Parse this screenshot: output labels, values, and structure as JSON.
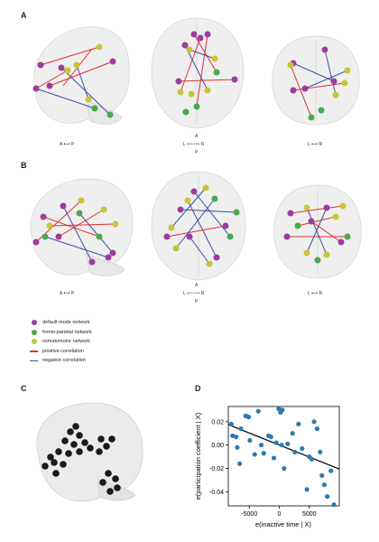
{
  "panels": {
    "a": "A",
    "b": "B",
    "c": "C",
    "d": "D"
  },
  "orientation": {
    "sagittal": "A ⟷ P",
    "axial_ap_top": "A",
    "axial_lr": "L ⟸⟹ R",
    "axial_ap_bottom": "P",
    "coronal": "L ⟷ R"
  },
  "legend": [
    {
      "label": "default mode network",
      "kind": "dot",
      "color": "#9b3d9e"
    },
    {
      "label": "fronto-parietal network",
      "kind": "dot",
      "color": "#4aa84d"
    },
    {
      "label": "somatomotor network",
      "kind": "dot",
      "color": "#c9c43a"
    },
    {
      "label": "positive correlation",
      "kind": "line",
      "color": "#e03030"
    },
    {
      "label": "negative correlation",
      "kind": "line",
      "color": "#3b4fa0"
    }
  ],
  "colors": {
    "dmn": "#9b3d9e",
    "fpn": "#4aa84d",
    "smn": "#c9c43a",
    "pos": "#e03030",
    "neg": "#3b4fa0",
    "scatter_point": "#2b7bb0",
    "node_c": "#1a1a1a"
  },
  "chart_data": {
    "type": "scatter",
    "xlabel": "e(inactive time | X)",
    "ylabel": "e(participation coefficient | X)",
    "xlim": [
      -8500,
      10000
    ],
    "ylim": [
      -0.052,
      0.033
    ],
    "xticks": [
      -5000,
      0,
      5000
    ],
    "xtick_labels": [
      "-5000",
      "0",
      "5000"
    ],
    "yticks": [
      -0.04,
      -0.02,
      0.0,
      0.02
    ],
    "ytick_labels": [
      "-0.04",
      "-0.02",
      "0.00",
      "0.02"
    ],
    "points": [
      [
        -8000,
        0.018
      ],
      [
        -7800,
        0.008
      ],
      [
        -7200,
        0.007
      ],
      [
        -7000,
        -0.002
      ],
      [
        -6600,
        -0.016
      ],
      [
        -6400,
        0.014
      ],
      [
        -5600,
        0.025
      ],
      [
        -5100,
        0.024
      ],
      [
        -4900,
        0.004
      ],
      [
        -4100,
        -0.008
      ],
      [
        -3500,
        0.029
      ],
      [
        -3000,
        0.0
      ],
      [
        -2600,
        -0.007
      ],
      [
        -1800,
        0.008
      ],
      [
        -1400,
        0.007
      ],
      [
        -900,
        -0.011
      ],
      [
        -500,
        0.002
      ],
      [
        -100,
        0.031
      ],
      [
        200,
        0.028
      ],
      [
        400,
        0.0
      ],
      [
        500,
        0.03
      ],
      [
        800,
        -0.02
      ],
      [
        1400,
        0.001
      ],
      [
        2200,
        0.01
      ],
      [
        2600,
        -0.006
      ],
      [
        3200,
        0.018
      ],
      [
        3800,
        -0.003
      ],
      [
        4600,
        -0.038
      ],
      [
        5000,
        -0.01
      ],
      [
        5400,
        -0.012
      ],
      [
        5800,
        0.02
      ],
      [
        6300,
        0.014
      ],
      [
        6800,
        -0.006
      ],
      [
        7100,
        -0.026
      ],
      [
        7500,
        -0.034
      ],
      [
        8000,
        -0.044
      ],
      [
        8600,
        -0.022
      ],
      [
        9100,
        -0.051
      ]
    ],
    "fit_line": {
      "x": [
        -8500,
        10000
      ],
      "y": [
        0.0175,
        -0.0205
      ]
    }
  }
}
